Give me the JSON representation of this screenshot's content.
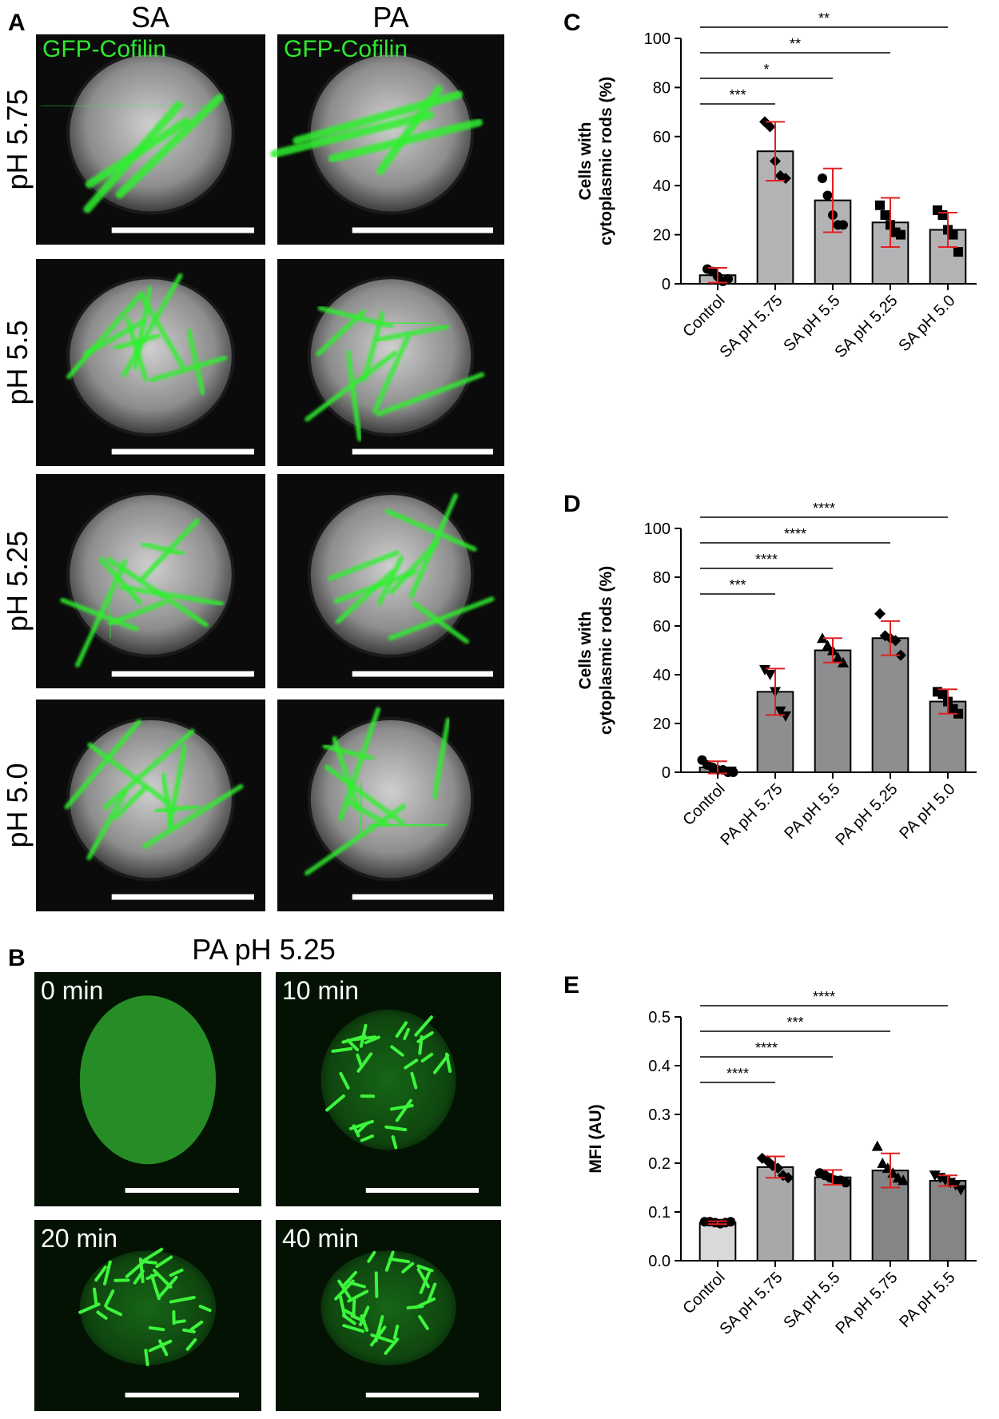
{
  "panel_a": {
    "label": "A",
    "columns": [
      "SA",
      "PA"
    ],
    "stain": "GFP-Cofilin",
    "rows": [
      "pH 5.75",
      "pH 5.5",
      "pH 5.25",
      "pH 5.0"
    ]
  },
  "panel_b": {
    "label": "B",
    "title": "PA  pH 5.25",
    "times": [
      "0 min",
      "10 min",
      "20 min",
      "40 min"
    ]
  },
  "chart_data": [
    {
      "type": "bar",
      "panel": "C",
      "ylabel": [
        "Cells with",
        "cytoplasmic rods (%)"
      ],
      "categories": [
        "Control",
        "SA pH 5.75",
        "SA pH 5.5",
        "SA pH 5.25",
        "SA pH 5.0"
      ],
      "values": [
        3.5,
        54,
        34,
        25,
        22
      ],
      "errors": [
        3,
        12,
        13,
        10,
        7
      ],
      "points": [
        [
          6,
          5,
          3,
          1,
          2
        ],
        [
          66,
          64,
          50,
          44,
          43
        ],
        [
          43,
          36,
          28,
          24,
          24
        ],
        [
          32,
          28,
          24,
          21,
          20
        ],
        [
          30,
          28,
          22,
          20,
          13
        ]
      ],
      "markers": [
        "circle",
        "diamond",
        "circle",
        "square",
        "square"
      ],
      "color": "#b3b3b6",
      "error_color": "#e02020",
      "ylim": [
        0,
        100
      ],
      "yticks": [
        0,
        20,
        40,
        60,
        80,
        100
      ],
      "significance": [
        "***",
        "*",
        "**",
        "**"
      ]
    },
    {
      "type": "bar",
      "panel": "D",
      "ylabel": [
        "Cells with",
        "cytoplasmic rods (%)"
      ],
      "categories": [
        "Control",
        "PA pH 5.75",
        "PA pH 5.5",
        "PA pH 5.25",
        "PA pH 5.0"
      ],
      "values": [
        2,
        33,
        50,
        55,
        29
      ],
      "errors": [
        2.5,
        9.5,
        5,
        7,
        5
      ],
      "points": [
        [
          5,
          3,
          2,
          1,
          1,
          0,
          0
        ],
        [
          42,
          40,
          33,
          25,
          23
        ],
        [
          55,
          52,
          50,
          47,
          45
        ],
        [
          65,
          56,
          55,
          54,
          48
        ],
        [
          33,
          32,
          29,
          26,
          24
        ]
      ],
      "markers": [
        "circle",
        "triangle-down",
        "triangle",
        "diamond",
        "square"
      ],
      "color": "#8e8e90",
      "error_color": "#e02020",
      "ylim": [
        0,
        100
      ],
      "yticks": [
        0,
        20,
        40,
        60,
        80,
        100
      ],
      "significance": [
        "***",
        "****",
        "****",
        "****"
      ]
    },
    {
      "type": "bar",
      "panel": "E",
      "ylabel": [
        "MFI (AU)"
      ],
      "categories": [
        "Control",
        "SA pH 5.75",
        "SA pH 5.5",
        "PA pH 5.75",
        "PA pH 5.5"
      ],
      "values": [
        0.078,
        0.192,
        0.171,
        0.185,
        0.164
      ],
      "errors": [
        0.003,
        0.022,
        0.015,
        0.035,
        0.011
      ],
      "points": [
        [
          0.08,
          0.08,
          0.078,
          0.076,
          0.078,
          0.08
        ],
        [
          0.21,
          0.205,
          0.195,
          0.19,
          0.175,
          0.17
        ],
        [
          0.18,
          0.175,
          0.17,
          0.165,
          0.165,
          0.16
        ],
        [
          0.235,
          0.2,
          0.19,
          0.18,
          0.17,
          0.165
        ],
        [
          0.175,
          0.17,
          0.165,
          0.16,
          0.155,
          0.145
        ]
      ],
      "markers": [
        "circle",
        "diamond",
        "circle",
        "triangle",
        "triangle-down"
      ],
      "colors": [
        "#d9d9d9",
        "#a8a8aa",
        "#a8a8aa",
        "#858587",
        "#858587"
      ],
      "error_color": "#e02020",
      "ylim": [
        0,
        0.5
      ],
      "yticks": [
        {
          "value": 0,
          "label": "0.0"
        },
        0.1,
        0.2,
        0.3,
        0.4,
        0.5
      ],
      "significance": [
        "****",
        "****",
        "***",
        "****"
      ]
    }
  ]
}
